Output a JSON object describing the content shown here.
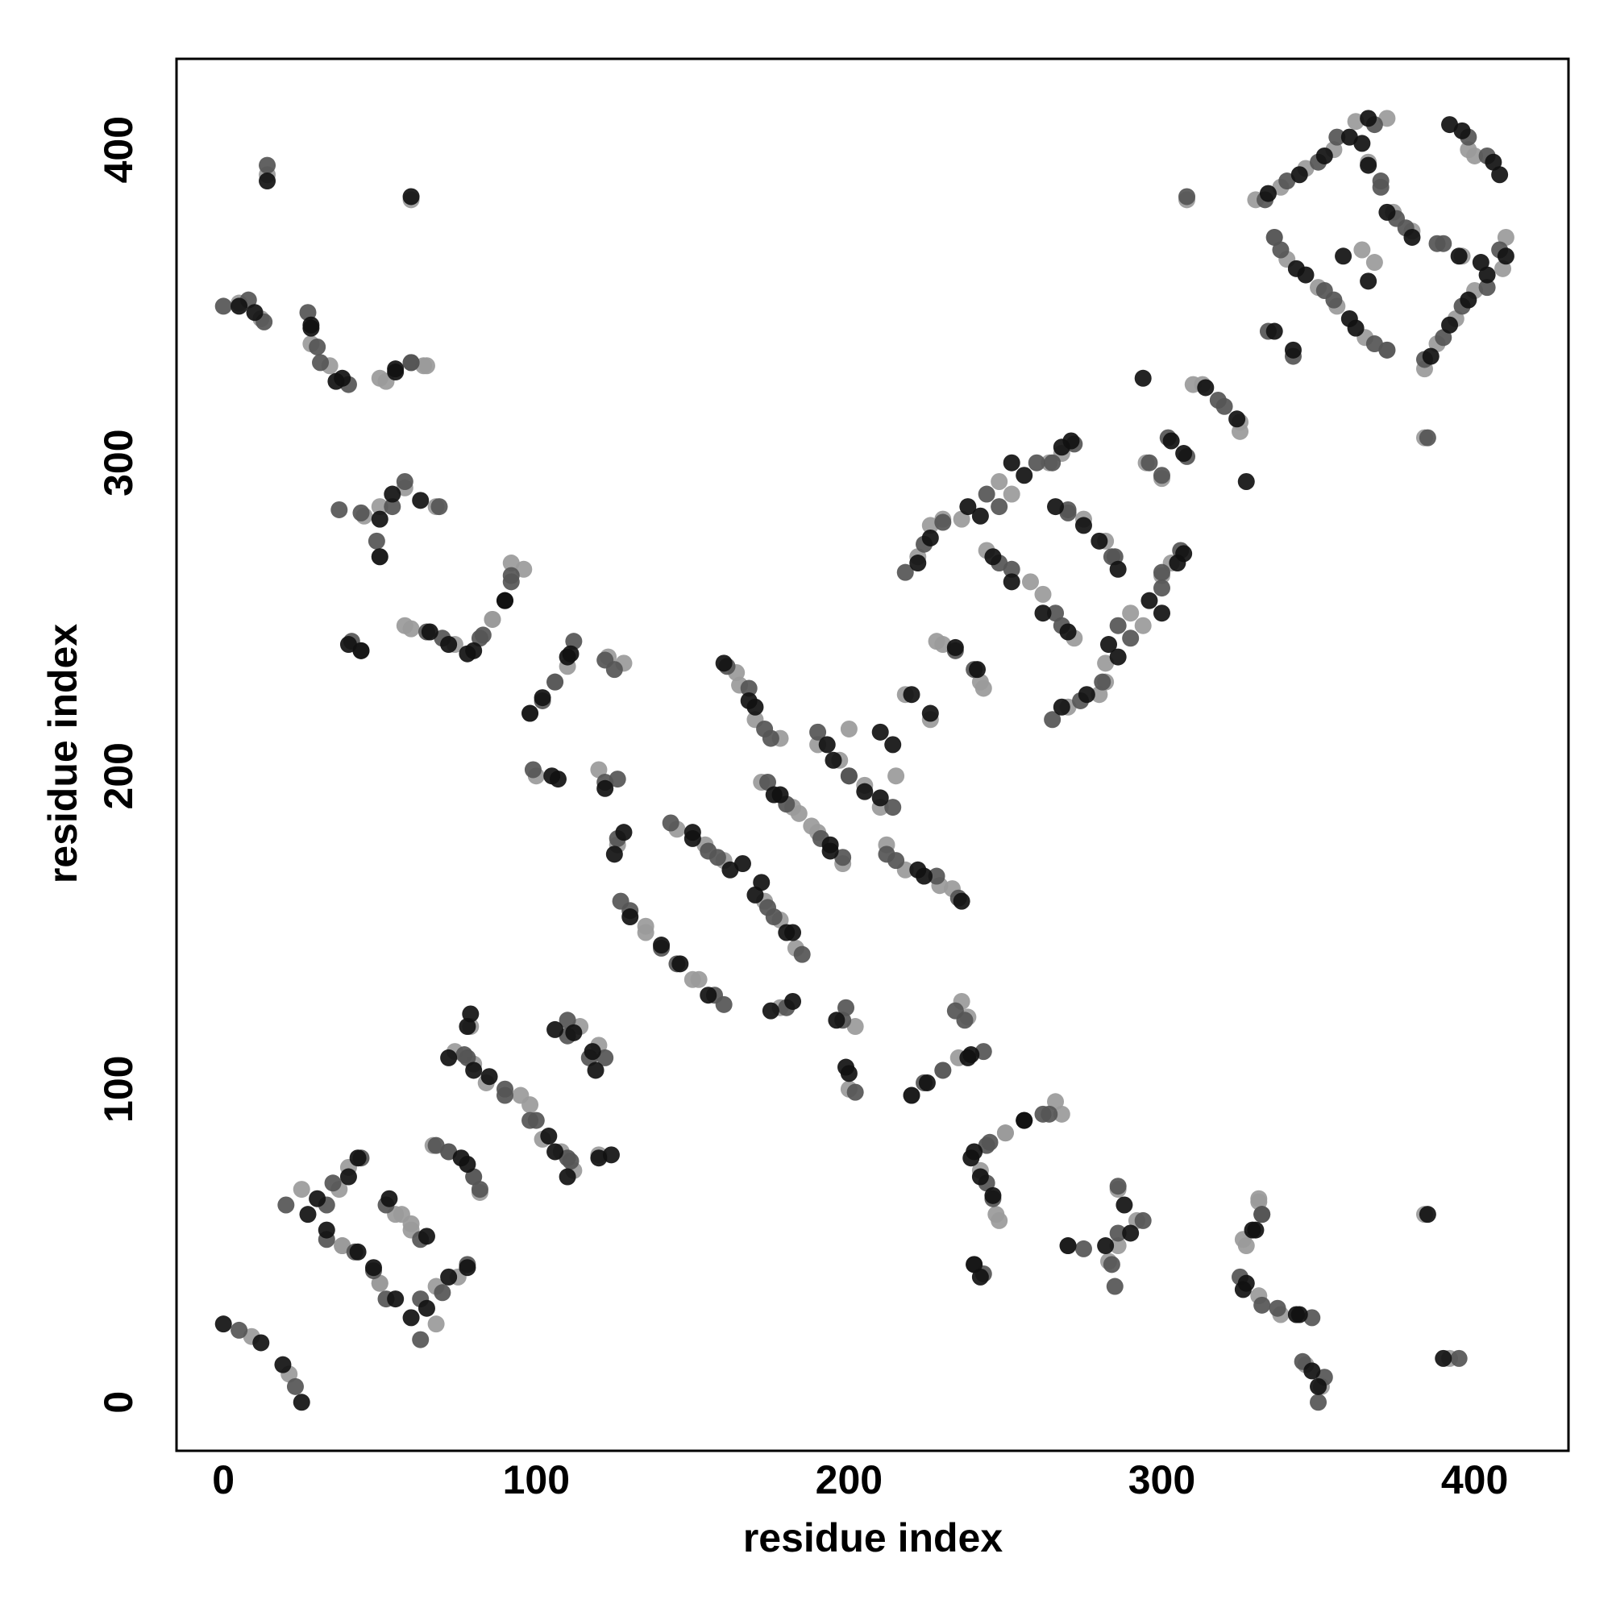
{
  "chart_data": {
    "type": "scatter",
    "x_label": "residue index",
    "y_label": "residue index",
    "xlim": [
      -15,
      430
    ],
    "ylim": [
      -15.5,
      429
    ],
    "xticks": [
      0,
      100,
      200,
      300,
      400
    ],
    "yticks": [
      0,
      100,
      200,
      300,
      400
    ],
    "series": [
      {
        "color": "#9a9a9a",
        "x": [
          9,
          25,
          40,
          38,
          50,
          57,
          68,
          60,
          72,
          82,
          80,
          95,
          102,
          112,
          114,
          120,
          5,
          14,
          34,
          50,
          64,
          45,
          58,
          50,
          60,
          74,
          86,
          96,
          106,
          100,
          128,
          126,
          135,
          150,
          145,
          160,
          165,
          178,
          178,
          172,
          184,
          190,
          190,
          205,
          200,
          218,
          233,
          202,
          220,
          235,
          238,
          250,
          268,
          248,
          226,
          222,
          236,
          252,
          264,
          228,
          242,
          258,
          272,
          275,
          280,
          282,
          294,
          303,
          300,
          310,
          325,
          286,
          286,
          326,
          331,
          338,
          346,
          384,
          330,
          346,
          362,
          340,
          356,
          372,
          374,
          388,
          400,
          396,
          410,
          400,
          364,
          384,
          21,
          68,
          75,
          50,
          38,
          60,
          37,
          55,
          80,
          67,
          108,
          98,
          84,
          74,
          120,
          79,
          351,
          392,
          331,
          327,
          331,
          283,
          292,
          270,
          247,
          242,
          250,
          266,
          230,
          200,
          236,
          178,
          152,
          135,
          183,
          173,
          229,
          212,
          154,
          198,
          188,
          182,
          210,
          197,
          215,
          170,
          164,
          120,
          98,
          110,
          123,
          86,
          92,
          58,
          218,
          270,
          282,
          290,
          300,
          243,
          230,
          262,
          244,
          282,
          226,
          230,
          248,
          268,
          295,
          325,
          313,
          50,
          68,
          52,
          65,
          28,
          12,
          60,
          384,
          394,
          409,
          365,
          350,
          336,
          380,
          338,
          355,
          366,
          372,
          398,
          368,
          308
        ],
        "values": [
          21,
          68,
          75,
          50,
          38,
          60,
          37,
          55,
          80,
          67,
          108,
          98,
          84,
          74,
          120,
          79,
          351,
          392,
          331,
          327,
          331,
          283,
          292,
          270,
          247,
          242,
          250,
          266,
          230,
          200,
          236,
          178,
          152,
          135,
          183,
          173,
          229,
          212,
          154,
          198,
          188,
          182,
          210,
          197,
          215,
          170,
          164,
          120,
          98,
          110,
          123,
          86,
          92,
          58,
          218,
          270,
          282,
          290,
          300,
          243,
          230,
          262,
          244,
          282,
          226,
          230,
          248,
          268,
          295,
          325,
          313,
          50,
          68,
          52,
          65,
          28,
          12,
          60,
          384,
          394,
          409,
          365,
          350,
          336,
          380,
          338,
          355,
          366,
          372,
          398,
          368,
          308,
          9,
          25,
          40,
          38,
          50,
          57,
          68,
          60,
          72,
          82,
          80,
          95,
          102,
          112,
          114,
          120,
          5,
          14,
          34,
          50,
          64,
          45,
          58,
          50,
          60,
          74,
          86,
          96,
          106,
          100,
          128,
          126,
          135,
          150,
          145,
          160,
          165,
          178,
          178,
          172,
          184,
          190,
          190,
          205,
          200,
          218,
          233,
          202,
          220,
          235,
          238,
          250,
          268,
          248,
          226,
          222,
          236,
          252,
          264,
          228,
          242,
          258,
          272,
          275,
          280,
          282,
          294,
          303,
          300,
          310,
          325,
          286,
          286,
          326,
          331,
          338,
          346,
          384,
          330,
          346,
          362,
          340,
          356,
          372,
          374,
          388,
          400,
          396,
          410,
          400,
          364,
          384
        ]
      },
      {
        "color": "#555555",
        "x": [
          5,
          20,
          35,
          33,
          48,
          52,
          63,
          78,
          68,
          80,
          77,
          90,
          98,
          110,
          110,
          122,
          0,
          13,
          30,
          40,
          60,
          37,
          54,
          69,
          44,
          70,
          82,
          92,
          102,
          112,
          122,
          126,
          130,
          145,
          160,
          155,
          161,
          173,
          174,
          185,
          180,
          180,
          198,
          200,
          214,
          212,
          228,
          198,
          202,
          230,
          234,
          245,
          262,
          246,
          243,
          218,
          230,
          248,
          260,
          272,
          240,
          252,
          268,
          270,
          274,
          285,
          290,
          300,
          296,
          308,
          320,
          284,
          294,
          275,
          332,
          332,
          348,
          352,
          395,
          340,
          356,
          336,
          352,
          368,
          370,
          384,
          396,
          390,
          408,
          398,
          308,
          378,
          342,
          23,
          63,
          70,
          52,
          42,
          63,
          33,
          44,
          82,
          72,
          111,
          100,
          90,
          78,
          117,
          110,
          350,
          345,
          337,
          325,
          332,
          285,
          286,
          286,
          240,
          244,
          244,
          264,
          224,
          243,
          237,
          199,
          157,
          140,
          127,
          176,
          235,
          215,
          158,
          143,
          191,
          126,
          174,
          200,
          190,
          175,
          168,
          122,
          99,
          106,
          125,
          83,
          92,
          65,
          41,
          265,
          281,
          286,
          300,
          306,
          234,
          266,
          248,
          284,
          224,
          270,
          244,
          265,
          300,
          302,
          318,
          44,
          58,
          49,
          60,
          31,
          27,
          8,
          14,
          390,
          404,
          372,
          355,
          338,
          388,
          333,
          350,
          370,
          368,
          404,
          385,
          375,
          334
        ],
        "values": [
          23,
          63,
          70,
          52,
          42,
          63,
          33,
          44,
          82,
          72,
          111,
          100,
          90,
          78,
          117,
          110,
          350,
          345,
          337,
          325,
          332,
          285,
          286,
          286,
          240,
          244,
          244,
          264,
          224,
          243,
          237,
          199,
          157,
          140,
          127,
          176,
          235,
          215,
          158,
          143,
          191,
          126,
          174,
          200,
          190,
          175,
          168,
          122,
          99,
          106,
          125,
          83,
          92,
          65,
          41,
          265,
          281,
          286,
          300,
          306,
          234,
          266,
          248,
          284,
          224,
          270,
          244,
          265,
          300,
          302,
          318,
          44,
          58,
          49,
          60,
          31,
          27,
          8,
          14,
          390,
          404,
          372,
          355,
          338,
          388,
          333,
          350,
          370,
          368,
          404,
          385,
          375,
          334,
          5,
          20,
          35,
          33,
          48,
          52,
          63,
          78,
          68,
          80,
          77,
          90,
          98,
          110,
          110,
          122,
          0,
          13,
          30,
          40,
          60,
          37,
          54,
          69,
          44,
          70,
          82,
          92,
          102,
          112,
          122,
          126,
          130,
          145,
          160,
          155,
          161,
          173,
          174,
          185,
          180,
          180,
          198,
          200,
          214,
          212,
          228,
          198,
          202,
          230,
          234,
          245,
          262,
          246,
          243,
          218,
          230,
          248,
          260,
          272,
          240,
          252,
          268,
          270,
          274,
          285,
          290,
          300,
          296,
          308,
          320,
          284,
          294,
          275,
          332,
          332,
          348,
          352,
          395,
          340,
          356,
          336,
          352,
          368,
          370,
          384,
          396,
          390,
          408,
          398,
          308,
          378,
          342
        ]
      },
      {
        "color": "#111111",
        "x": [
          0,
          12,
          30,
          43,
          43,
          55,
          60,
          72,
          65,
          76,
          72,
          85,
          78,
          106,
          106,
          118,
          124,
          10,
          28,
          38,
          55,
          60,
          50,
          63,
          40,
          66,
          78,
          90,
          98,
          110,
          107,
          122,
          128,
          140,
          155,
          150,
          166,
          170,
          170,
          182,
          176,
          175,
          194,
          195,
          210,
          210,
          224,
          236,
          200,
          225,
          239,
          240,
          256,
          242,
          240,
          220,
          226,
          242,
          256,
          268,
          234,
          246,
          262,
          266,
          268,
          280,
          286,
          300,
          307,
          303,
          314,
          327,
          290,
          270,
          329,
          326,
          344,
          350,
          390,
          334,
          352,
          366,
          346,
          362,
          366,
          380,
          392,
          404,
          402,
          392,
          406,
          366,
          336,
          25,
          19,
          65,
          78,
          48,
          33,
          27,
          40,
          53,
          78,
          110,
          104,
          120,
          80,
          119,
          112,
          79,
          348,
          343,
          327,
          330,
          385,
          282,
          288,
          242,
          246,
          239,
          256,
          220,
          238,
          199,
          196,
          182,
          146,
          130,
          180,
          172,
          222,
          162,
          150,
          194,
          125,
          178,
          205,
          193,
          214,
          168,
          160,
          105,
          102,
          111,
          80,
          90,
          72,
          44,
          226,
          276,
          283,
          296,
          305,
          241,
          270,
          252,
          286,
          222,
          275,
          238,
          252,
          271,
          307,
          324,
          294,
          54,
          50,
          55,
          36,
          28,
          5,
          14,
          386,
          398,
          410,
          360,
          343,
          395,
          372,
          344,
          360,
          364,
          408,
          396,
          358,
          342
        ],
        "values": [
          25,
          19,
          65,
          78,
          48,
          33,
          27,
          40,
          53,
          78,
          110,
          104,
          120,
          80,
          119,
          112,
          79,
          348,
          343,
          327,
          330,
          385,
          282,
          288,
          242,
          246,
          239,
          256,
          220,
          238,
          199,
          196,
          182,
          146,
          130,
          180,
          172,
          222,
          162,
          150,
          194,
          125,
          178,
          205,
          193,
          214,
          168,
          160,
          105,
          102,
          111,
          80,
          90,
          72,
          44,
          226,
          276,
          283,
          296,
          305,
          241,
          270,
          252,
          286,
          222,
          275,
          238,
          252,
          271,
          307,
          324,
          294,
          54,
          50,
          55,
          36,
          28,
          5,
          14,
          386,
          398,
          410,
          360,
          343,
          395,
          372,
          344,
          360,
          364,
          408,
          396,
          358,
          342,
          0,
          12,
          30,
          43,
          43,
          55,
          60,
          72,
          65,
          76,
          72,
          85,
          78,
          106,
          106,
          118,
          124,
          10,
          28,
          38,
          55,
          60,
          50,
          63,
          40,
          66,
          78,
          90,
          98,
          110,
          107,
          122,
          128,
          140,
          155,
          150,
          166,
          170,
          170,
          182,
          176,
          175,
          194,
          195,
          210,
          210,
          224,
          236,
          200,
          225,
          239,
          240,
          256,
          242,
          240,
          220,
          226,
          242,
          256,
          268,
          234,
          246,
          262,
          266,
          268,
          280,
          286,
          300,
          307,
          303,
          314,
          327,
          290,
          270,
          329,
          326,
          344,
          350,
          390,
          334,
          352,
          366,
          346,
          362,
          366,
          380,
          392,
          404,
          402,
          392,
          406,
          366,
          336
        ]
      }
    ]
  }
}
